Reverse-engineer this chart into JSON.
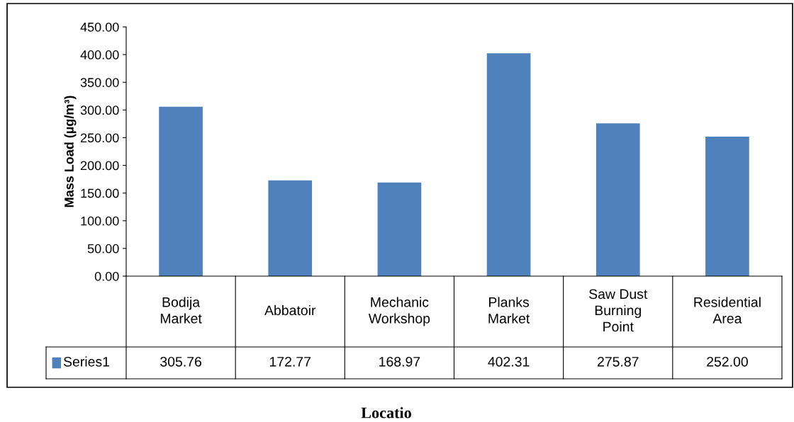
{
  "chart_data": {
    "type": "bar",
    "ylabel": "Mass Load (µg/m³)",
    "xlabel": "Locatio",
    "categories": [
      "Bodija\nMarket",
      "Abbatoir",
      "Mechanic\nWorkshop",
      "Planks\nMarket",
      "Saw Dust\nBurning\nPoint",
      "Residential\nArea"
    ],
    "series": [
      {
        "name": "Series1",
        "color": "#4f81bd",
        "values": [
          305.76,
          172.77,
          168.97,
          402.31,
          275.87,
          252.0
        ],
        "value_labels": [
          "305.76",
          "172.77",
          "168.97",
          "402.31",
          "275.87",
          "252.00"
        ]
      }
    ],
    "ylim": [
      0,
      450
    ],
    "yticks": [
      {
        "value": 0,
        "label": "0.00"
      },
      {
        "value": 50,
        "label": "50.00"
      },
      {
        "value": 100,
        "label": "100.00"
      },
      {
        "value": 150,
        "label": "150.00"
      },
      {
        "value": 200,
        "label": "200.00"
      },
      {
        "value": 250,
        "label": "250.00"
      },
      {
        "value": 300,
        "label": "300.00"
      },
      {
        "value": 350,
        "label": "350.00"
      },
      {
        "value": 400,
        "label": "400.00"
      },
      {
        "value": 450,
        "label": "450.00"
      }
    ],
    "legend": "bottom"
  }
}
